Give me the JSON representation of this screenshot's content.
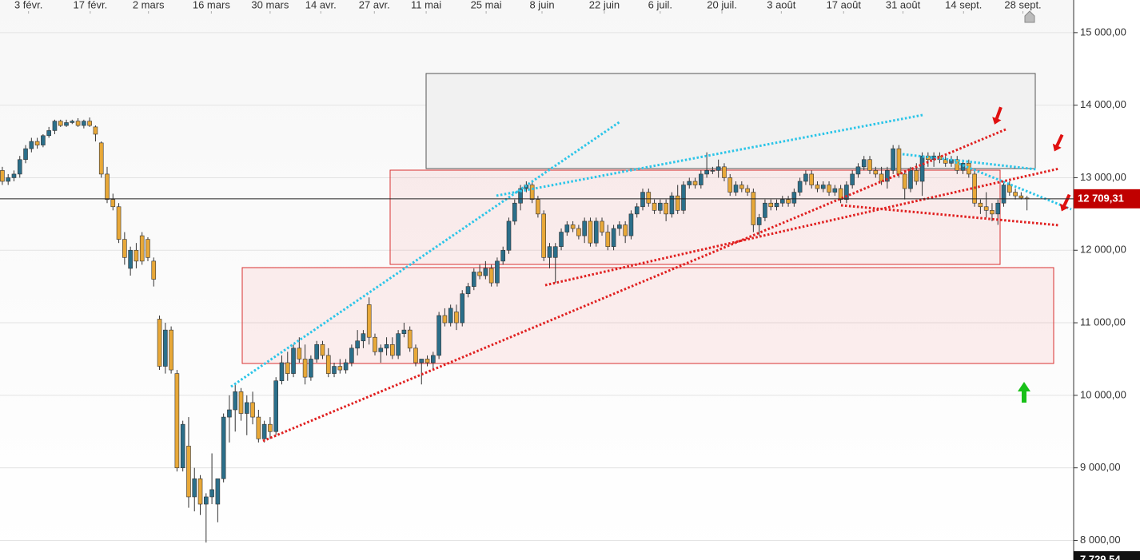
{
  "chart_data": {
    "type": "candlestick",
    "x": [
      0,
      1,
      2,
      3,
      4,
      5,
      6,
      7,
      8,
      9,
      10,
      11,
      12,
      13,
      14,
      15,
      16,
      17,
      18,
      19,
      20,
      21,
      22,
      23,
      24,
      25,
      26,
      27,
      28,
      29,
      30,
      31,
      32,
      33,
      34,
      35,
      36,
      37,
      38,
      39,
      40,
      41,
      42,
      43,
      44,
      45,
      46,
      47,
      48,
      49,
      50,
      51,
      52,
      53,
      54,
      55,
      56,
      57,
      58,
      59,
      60,
      61,
      62,
      63,
      64,
      65,
      66,
      67,
      68,
      69,
      70,
      71,
      72,
      73,
      74,
      75,
      76,
      77,
      78,
      79,
      80,
      81,
      82,
      83,
      84,
      85,
      86,
      87,
      88,
      89,
      90,
      91,
      92,
      93,
      94,
      95,
      96,
      97,
      98,
      99,
      100,
      101,
      102,
      103,
      104,
      105,
      106,
      107,
      108,
      109,
      110,
      111,
      112,
      113,
      114,
      115,
      116,
      117,
      118,
      119,
      120,
      121,
      122,
      123,
      124,
      125,
      126,
      127,
      128,
      129,
      130,
      131,
      132,
      133,
      134,
      135,
      136,
      137,
      138,
      139,
      140,
      141,
      142,
      143,
      144,
      145,
      146,
      147,
      148,
      149,
      150,
      151,
      152,
      153,
      154,
      155,
      156,
      157,
      158,
      159,
      160,
      161,
      162,
      163,
      164,
      165,
      166,
      167,
      168,
      169,
      170,
      171,
      172,
      173,
      174,
      175,
      176
    ],
    "open": [
      13100,
      12950,
      13000,
      13050,
      13250,
      13400,
      13500,
      13450,
      13580,
      13650,
      13780,
      13720,
      13760,
      13780,
      13720,
      13780,
      13700,
      13480,
      13050,
      12700,
      12600,
      12150,
      11750,
      12000,
      12200,
      12150,
      11850,
      11050,
      10400,
      10900,
      10300,
      9000,
      9300,
      8600,
      8850,
      8500,
      8600,
      8500,
      8850,
      9700,
      9800,
      10050,
      9750,
      9900,
      9700,
      9400,
      9600,
      9500,
      10200,
      10450,
      10300,
      10650,
      10500,
      10250,
      10500,
      10700,
      10550,
      10300,
      10400,
      10350,
      10450,
      10650,
      10750,
      11250,
      10800,
      10600,
      10650,
      10700,
      10550,
      10850,
      10900,
      10650,
      10450,
      10500,
      10450,
      10550,
      11100,
      11000,
      11150,
      11000,
      11400,
      11500,
      11700,
      11650,
      11750,
      11550,
      11850,
      12000,
      12400,
      12650,
      12850,
      12900,
      12700,
      12500,
      11900,
      11900,
      12050,
      12250,
      12350,
      12300,
      12200,
      12400,
      12100,
      12400,
      12250,
      12050,
      12300,
      12350,
      12200,
      12500,
      12600,
      12800,
      12650,
      12550,
      12650,
      12500,
      12750,
      12550,
      12900,
      12950,
      12900,
      13050,
      13100,
      13100,
      13150,
      13000,
      12800,
      12900,
      12850,
      12800,
      12350,
      12450,
      12650,
      12600,
      12650,
      12700,
      12650,
      12800,
      12950,
      13050,
      12900,
      12850,
      12900,
      12800,
      12850,
      12700,
      12900,
      13050,
      13150,
      13250,
      13100,
      13050,
      12950,
      13100,
      13400,
      13050,
      12850,
      13100,
      12950,
      13300,
      13250,
      13300,
      13250,
      13200,
      13250,
      13100,
      13200,
      13050,
      12650,
      12600,
      12550,
      12500,
      12650,
      12900,
      12800,
      12750,
      12720
    ],
    "high": [
      13150,
      13050,
      13100,
      13300,
      13450,
      13550,
      13550,
      13600,
      13700,
      13800,
      13800,
      13800,
      13800,
      13820,
      13800,
      13830,
      13720,
      13500,
      13150,
      12780,
      12650,
      12250,
      12050,
      12100,
      12250,
      12180,
      11900,
      11100,
      11000,
      10950,
      10350,
      9650,
      9700,
      9000,
      8900,
      8650,
      9200,
      8850,
      9750,
      10000,
      10150,
      10100,
      10000,
      10050,
      9800,
      9650,
      9700,
      10250,
      10550,
      10600,
      10700,
      10800,
      10700,
      10550,
      10750,
      10750,
      10650,
      10450,
      10500,
      10500,
      10700,
      10900,
      10900,
      11350,
      10850,
      10700,
      10800,
      10800,
      10900,
      11000,
      10950,
      10700,
      10500,
      10550,
      10600,
      11150,
      11200,
      11250,
      11250,
      11450,
      11550,
      11750,
      11800,
      11850,
      11800,
      11900,
      12050,
      12450,
      12700,
      12900,
      12950,
      12950,
      12750,
      12550,
      12100,
      12100,
      12300,
      12400,
      12400,
      12350,
      12450,
      12450,
      12450,
      12450,
      12350,
      12350,
      12400,
      12400,
      12550,
      12650,
      12850,
      12850,
      12700,
      12700,
      12700,
      12800,
      12900,
      12950,
      13000,
      13000,
      13100,
      13350,
      13150,
      13250,
      13200,
      13050,
      12950,
      12950,
      12900,
      12850,
      12500,
      12700,
      12700,
      12700,
      12750,
      12750,
      12850,
      13000,
      13100,
      13100,
      12950,
      12950,
      12950,
      12900,
      12900,
      12950,
      13100,
      13200,
      13300,
      13300,
      13150,
      13150,
      13150,
      13450,
      13450,
      13100,
      13150,
      13200,
      13350,
      13350,
      13350,
      13350,
      13300,
      13300,
      13300,
      13250,
      13250,
      13100,
      12700,
      12800,
      12650,
      12700,
      12950,
      12950,
      12850,
      12800,
      12750
    ],
    "low": [
      12900,
      12900,
      12950,
      13000,
      13200,
      13350,
      13400,
      13420,
      13550,
      13600,
      13700,
      13700,
      13740,
      13700,
      13680,
      13700,
      13500,
      13000,
      12650,
      12550,
      12100,
      11800,
      11650,
      11750,
      11800,
      11850,
      11500,
      10350,
      10300,
      10300,
      8950,
      8950,
      8450,
      8400,
      8350,
      7970,
      8500,
      8250,
      8800,
      9350,
      9500,
      9650,
      9450,
      9600,
      9350,
      9350,
      9400,
      9450,
      10150,
      10200,
      10250,
      10450,
      10150,
      10200,
      10450,
      10500,
      10250,
      10250,
      10300,
      10300,
      10400,
      10550,
      10650,
      10700,
      10550,
      10450,
      10550,
      10500,
      10500,
      10800,
      10600,
      10400,
      10150,
      10400,
      10350,
      10500,
      10950,
      10950,
      10900,
      10950,
      11350,
      11450,
      11600,
      11600,
      11500,
      11500,
      11800,
      11950,
      12350,
      12550,
      12800,
      12650,
      12450,
      11850,
      11750,
      11550,
      12000,
      12200,
      12250,
      12150,
      12100,
      12050,
      12050,
      12200,
      12000,
      12000,
      12200,
      12100,
      12150,
      12450,
      12550,
      12600,
      12500,
      12500,
      12400,
      12450,
      12500,
      12500,
      12850,
      12850,
      12850,
      13000,
      13050,
      13000,
      12950,
      12750,
      12750,
      12800,
      12750,
      12250,
      12200,
      12400,
      12550,
      12550,
      12600,
      12600,
      12600,
      12750,
      12900,
      12850,
      12800,
      12800,
      12750,
      12750,
      12650,
      12650,
      12850,
      13000,
      13100,
      13050,
      13000,
      12900,
      12850,
      13050,
      13000,
      12700,
      12800,
      12900,
      12750,
      13150,
      13150,
      13200,
      13150,
      13150,
      13050,
      13050,
      13000,
      12600,
      12500,
      12450,
      12400,
      12350,
      12600,
      12750,
      12700,
      12700,
      12550
    ],
    "close": [
      12950,
      13000,
      13050,
      13250,
      13400,
      13500,
      13450,
      13580,
      13650,
      13780,
      13720,
      13760,
      13780,
      13720,
      13780,
      13720,
      13600,
      13050,
      12700,
      12600,
      12150,
      11900,
      12000,
      11850,
      11850,
      11900,
      11600,
      10400,
      10900,
      10350,
      9000,
      9600,
      8600,
      8850,
      8500,
      8600,
      8700,
      8850,
      9700,
      9800,
      10050,
      9750,
      9900,
      9700,
      9400,
      9600,
      9500,
      10200,
      10450,
      10300,
      10650,
      10500,
      10250,
      10500,
      10700,
      10550,
      10300,
      10400,
      10350,
      10450,
      10650,
      10750,
      10850,
      10800,
      10600,
      10650,
      10700,
      10550,
      10850,
      10900,
      10650,
      10450,
      10500,
      10450,
      10550,
      11100,
      11000,
      11200,
      11000,
      11400,
      11500,
      11700,
      11650,
      11750,
      11550,
      11850,
      12000,
      12400,
      12650,
      12850,
      12900,
      12700,
      12500,
      11900,
      12050,
      12050,
      12250,
      12350,
      12300,
      12200,
      12400,
      12100,
      12400,
      12250,
      12050,
      12300,
      12350,
      12200,
      12500,
      12600,
      12800,
      12650,
      12550,
      12650,
      12500,
      12750,
      12550,
      12900,
      12950,
      12900,
      13050,
      13100,
      13100,
      13150,
      13000,
      12800,
      12900,
      12850,
      12800,
      12350,
      12450,
      12650,
      12600,
      12650,
      12700,
      12650,
      12800,
      12950,
      13050,
      12900,
      12850,
      12900,
      12800,
      12850,
      12700,
      12900,
      13050,
      13150,
      13250,
      13100,
      13050,
      12950,
      13100,
      13400,
      13050,
      12850,
      13100,
      12950,
      13300,
      13250,
      13300,
      13250,
      13200,
      13250,
      13100,
      13200,
      13050,
      12650,
      12600,
      12550,
      12500,
      12650,
      12900,
      12800,
      12750,
      12720,
      12709.31
    ],
    "up_color": "#2b6f8a",
    "down_color": "#e8a838",
    "xlim": [
      -0.4,
      183.6
    ],
    "ylim": [
      7729.54,
      15450
    ],
    "xticks": [
      {
        "value": 4.5,
        "label": "3 févr."
      },
      {
        "value": 15.1,
        "label": "17 févr."
      },
      {
        "value": 25.1,
        "label": "2 mars"
      },
      {
        "value": 35.9,
        "label": "16 mars"
      },
      {
        "value": 46.0,
        "label": "30 mars"
      },
      {
        "value": 54.7,
        "label": "14 avr."
      },
      {
        "value": 63.9,
        "label": "27 avr."
      },
      {
        "value": 72.8,
        "label": "11 mai"
      },
      {
        "value": 83.1,
        "label": "25 mai"
      },
      {
        "value": 92.7,
        "label": "8 juin"
      },
      {
        "value": 103.4,
        "label": "22 juin"
      },
      {
        "value": 113.0,
        "label": "6 juil."
      },
      {
        "value": 123.6,
        "label": "20 juil."
      },
      {
        "value": 133.8,
        "label": "3 août"
      },
      {
        "value": 144.5,
        "label": "17 août"
      },
      {
        "value": 154.7,
        "label": "31 août"
      },
      {
        "value": 165.1,
        "label": "14 sept."
      },
      {
        "value": 175.3,
        "label": "28 sept."
      }
    ],
    "yticks": [
      {
        "value": 8000,
        "label": "8 000,00"
      },
      {
        "value": 9000,
        "label": "9 000,00"
      },
      {
        "value": 10000,
        "label": "10 000,00"
      },
      {
        "value": 11000,
        "label": "11 000,00"
      },
      {
        "value": 12000,
        "label": "12 000,00"
      },
      {
        "value": 13000,
        "label": "13 000,00"
      },
      {
        "value": 14000,
        "label": "14 000,00"
      },
      {
        "value": 15000,
        "label": "15 000,00"
      }
    ],
    "grid": true,
    "last_price": {
      "value": 12709.31,
      "label": "12 709,31",
      "color": "#c00000"
    },
    "axis_min": {
      "value": 7729.54,
      "label": "7 729,54",
      "color": "#111111"
    }
  }
}
